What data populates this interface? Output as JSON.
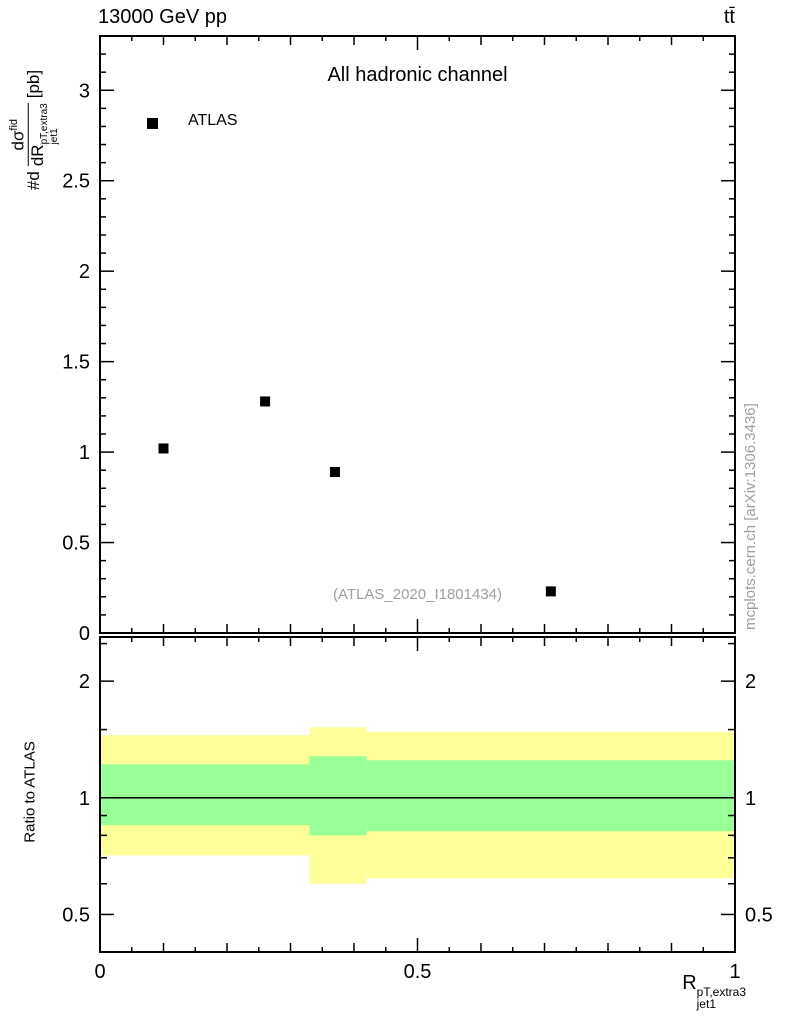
{
  "header": {
    "energy": "13000 GeV pp",
    "process": "tt̄"
  },
  "panel": {
    "title": "All hadronic channel",
    "legend_label": "ATLAS",
    "watermark": "(ATLAS_2020_I1801434)",
    "ylabel_prefix": "#d",
    "ylabel_numerator": "dσ",
    "ylabel_numerator_sup": "fid",
    "ylabel_denominator": "dR",
    "ylabel_denominator_sup": "pT,extra3",
    "ylabel_denominator_sub": "jet1",
    "ylabel_units": "[pb]"
  },
  "ratio_panel": {
    "ylabel": "Ratio to ATLAS"
  },
  "xaxis": {
    "label_base": "R",
    "label_sup": "pT,extra3",
    "label_sub": "jet1"
  },
  "side_note": "mcplots.cern.ch [arXiv:1306.3436]",
  "colors": {
    "band_outer": "#ffff99",
    "band_inner": "#99ff99",
    "marker": "#000000",
    "muted": "#9e9e9e"
  },
  "chart_data": {
    "type": "scatter",
    "title": "All hadronic channel",
    "legend": [
      "ATLAS"
    ],
    "xlabel": "R_jet1^{pT,extra3}",
    "xlim": [
      0,
      1
    ],
    "xticks": [
      0,
      0.5,
      1
    ],
    "xtick_labels": [
      "0",
      "0.5",
      "1"
    ],
    "top": {
      "ylabel": "dσ^{fid}/dR^{pT,extra3}_{jet1} [pb]",
      "ylim": [
        0,
        3.3
      ],
      "yticks": [
        0,
        0.5,
        1,
        1.5,
        2,
        2.5,
        3
      ],
      "ytick_labels": [
        "0",
        "0.5",
        "1",
        "1.5",
        "2",
        "2.5",
        "3"
      ],
      "grid": false,
      "series_name": "ATLAS",
      "points": [
        [
          0.1,
          1.02
        ],
        [
          0.26,
          1.28
        ],
        [
          0.37,
          0.89
        ],
        [
          0.71,
          0.23
        ]
      ]
    },
    "ratio": {
      "ylabel": "Ratio to ATLAS",
      "scale": "log",
      "ylim": [
        0.4,
        2.6
      ],
      "yticks": [
        0.5,
        1,
        2
      ],
      "ytick_labels": [
        "0.5",
        "1",
        "2"
      ],
      "y_minor": [
        0.6,
        0.7,
        0.8,
        0.9,
        1.5,
        2.5
      ],
      "line_y": 1,
      "bands": [
        {
          "x0": 0,
          "x1": 0.33,
          "yellow": [
            0.71,
            1.45
          ],
          "green": [
            0.85,
            1.22
          ]
        },
        {
          "x0": 0.33,
          "x1": 0.42,
          "yellow": [
            0.6,
            1.52
          ],
          "green": [
            0.8,
            1.28
          ]
        },
        {
          "x0": 0.42,
          "x1": 1.0,
          "yellow": [
            0.62,
            1.48
          ],
          "green": [
            0.82,
            1.25
          ]
        }
      ]
    }
  }
}
